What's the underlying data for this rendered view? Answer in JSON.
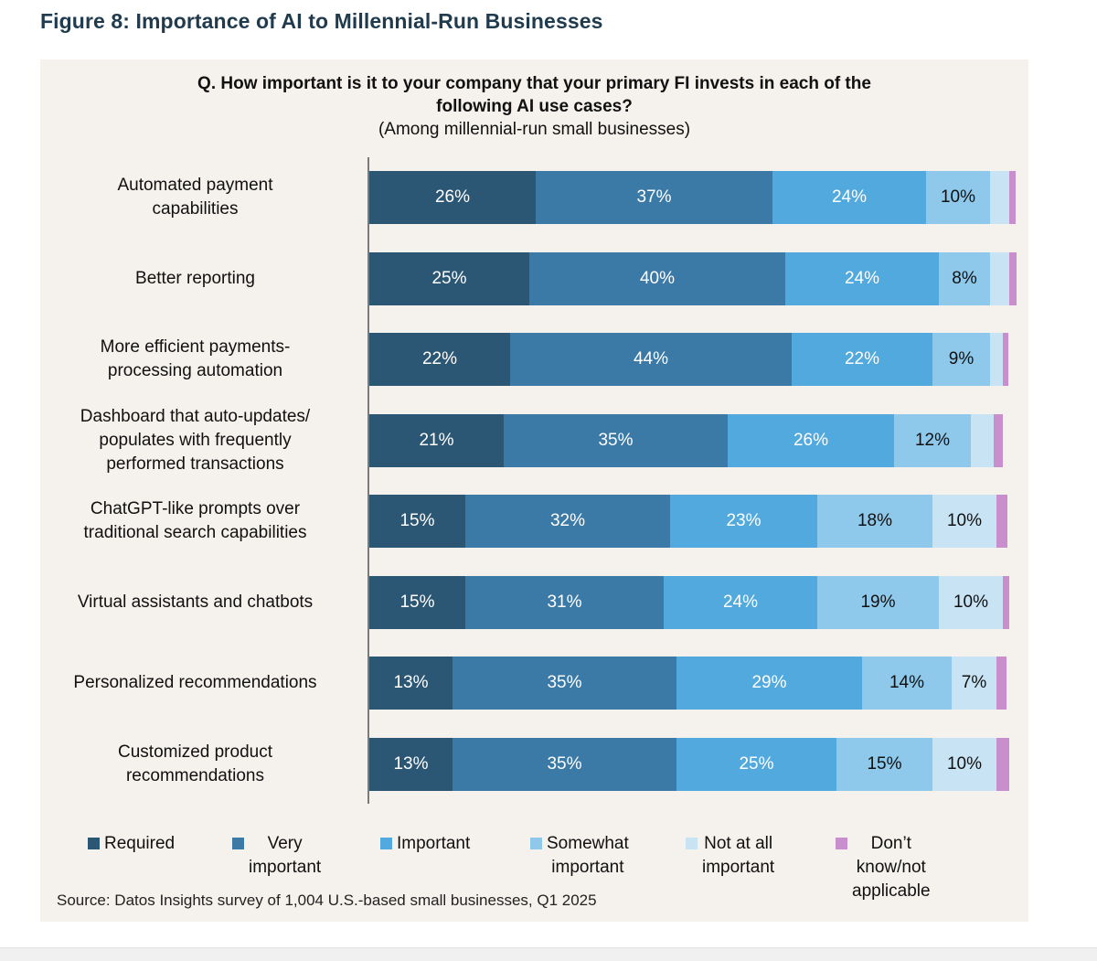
{
  "figure_title": "Figure 8: Importance of AI to Millennial-Run Businesses",
  "source": "Source: Datos Insights survey of 1,004 U.S.-based small businesses, Q1 2025",
  "chart_data": {
    "type": "bar",
    "orientation": "horizontal",
    "stacked": true,
    "title_lines": [
      "Q. How important is it to your company that your primary FI invests in each of the",
      "following AI use cases?"
    ],
    "subtitle": "(Among millennial-run small businesses)",
    "xlim": [
      0,
      100
    ],
    "grid": false,
    "legend_position": "bottom",
    "categories": [
      [
        "Automated payment",
        "capabilities"
      ],
      [
        "Better reporting"
      ],
      [
        "More efficient payments-",
        "processing automation"
      ],
      [
        "Dashboard that auto-updates/",
        "populates with frequently",
        "performed transactions"
      ],
      [
        "ChatGPT-like prompts over",
        "traditional search capabilities"
      ],
      [
        "Virtual assistants and chatbots"
      ],
      [
        "Personalized recommendations"
      ],
      [
        "Customized product",
        "recommendations"
      ]
    ],
    "series": [
      {
        "name": "Required",
        "legend_lines": [
          "Required"
        ],
        "color": "#2b5674",
        "text_color": "#ffffff",
        "values": [
          26,
          25,
          22,
          21,
          15,
          15,
          13,
          13
        ],
        "labels": [
          "26%",
          "25%",
          "22%",
          "21%",
          "15%",
          "15%",
          "13%",
          "13%"
        ]
      },
      {
        "name": "Very important",
        "legend_lines": [
          "Very",
          "important"
        ],
        "color": "#3b7aa6",
        "text_color": "#ffffff",
        "values": [
          37,
          40,
          44,
          35,
          32,
          31,
          35,
          35
        ],
        "labels": [
          "37%",
          "40%",
          "44%",
          "35%",
          "32%",
          "31%",
          "35%",
          "35%"
        ]
      },
      {
        "name": "Important",
        "legend_lines": [
          "Important"
        ],
        "color": "#52a9de",
        "text_color": "#ffffff",
        "values": [
          24,
          24,
          22,
          26,
          23,
          24,
          29,
          25
        ],
        "labels": [
          "24%",
          "24%",
          "22%",
          "26%",
          "23%",
          "24%",
          "29%",
          "25%"
        ]
      },
      {
        "name": "Somewhat important",
        "legend_lines": [
          "Somewhat",
          "important"
        ],
        "color": "#8ec8ea",
        "text_color": "#111111",
        "values": [
          10,
          8,
          9,
          12,
          18,
          19,
          14,
          15
        ],
        "labels": [
          "10%",
          "8%",
          "9%",
          "12%",
          "18%",
          "19%",
          "14%",
          "15%"
        ]
      },
      {
        "name": "Not at all important",
        "legend_lines": [
          "Not at all",
          "important"
        ],
        "color": "#c8e3f4",
        "text_color": "#111111",
        "values": [
          3,
          3,
          2,
          3.5,
          10,
          10,
          7,
          10
        ],
        "labels": [
          "",
          "",
          "",
          "",
          "10%",
          "10%",
          "7%",
          "10%"
        ]
      },
      {
        "name": "Don’t know/not applicable",
        "legend_lines": [
          "Don’t know/not",
          "applicable"
        ],
        "color": "#c98fcd",
        "text_color": "#111111",
        "values": [
          1,
          1.2,
          0.8,
          1.5,
          1.7,
          1,
          1.6,
          2
        ],
        "labels": [
          "",
          "",
          "",
          "",
          "",
          "",
          "",
          ""
        ]
      }
    ]
  }
}
